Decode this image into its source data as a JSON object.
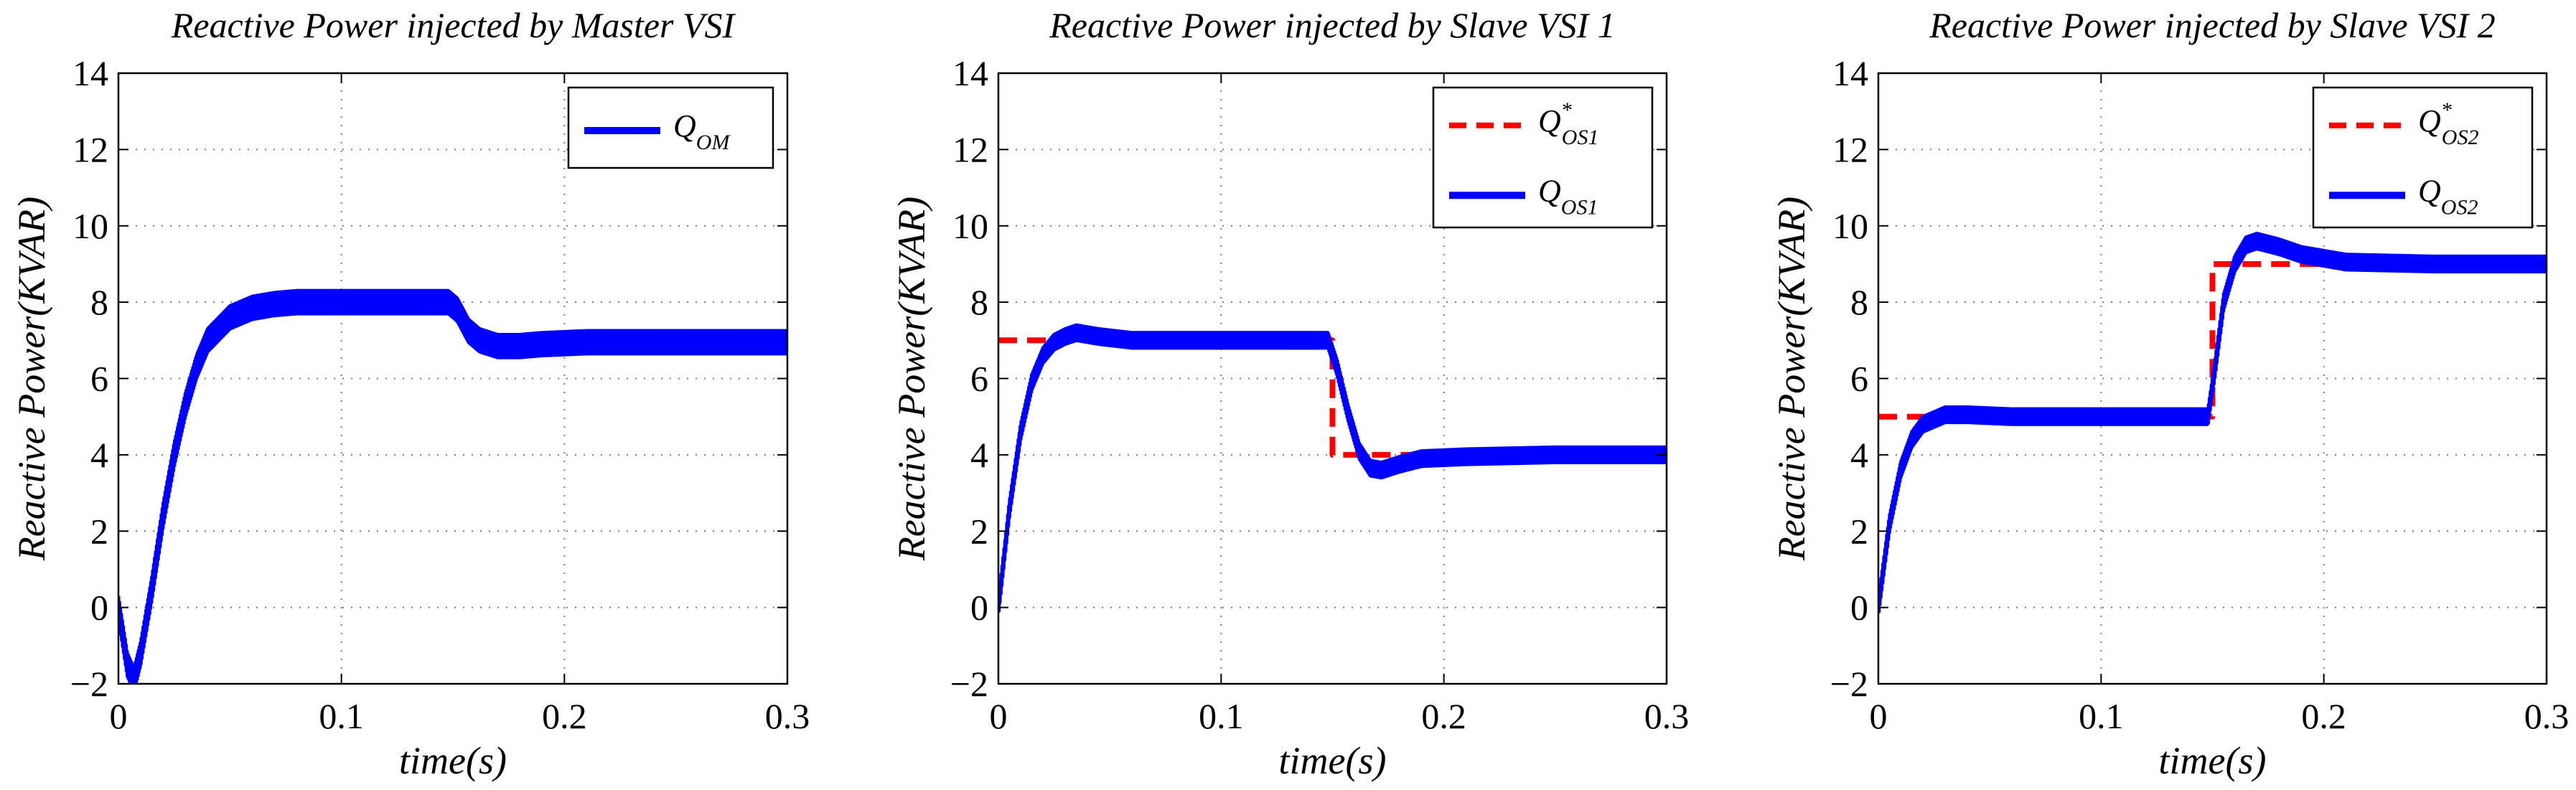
{
  "chart_data": [
    {
      "type": "line",
      "title": "Reactive Power injected by Master VSI",
      "xlabel": "time(s)",
      "ylabel": "Reactive Power(KVAR)",
      "xlim": [
        0,
        0.3
      ],
      "ylim": [
        -2,
        14
      ],
      "xticks": [
        "0",
        "0.1",
        "0.2",
        "0.3"
      ],
      "yticks": [
        "−2",
        "0",
        "2",
        "4",
        "6",
        "8",
        "10",
        "12",
        "14"
      ],
      "grid": true,
      "legend_position": "top-right",
      "series": [
        {
          "name": "Q_OM",
          "symbol": "Q",
          "subscript": "OM",
          "superscript": "",
          "style": "solid",
          "color": "#0000ff",
          "ripple": 0.3,
          "points": [
            [
              0,
              0
            ],
            [
              0.004,
              -1.5
            ],
            [
              0.007,
              -1.9
            ],
            [
              0.01,
              -1.2
            ],
            [
              0.015,
              0.5
            ],
            [
              0.02,
              2.4
            ],
            [
              0.025,
              4.0
            ],
            [
              0.03,
              5.3
            ],
            [
              0.035,
              6.3
            ],
            [
              0.04,
              7.0
            ],
            [
              0.05,
              7.6
            ],
            [
              0.06,
              7.85
            ],
            [
              0.07,
              7.95
            ],
            [
              0.08,
              8.0
            ],
            [
              0.1,
              8.0
            ],
            [
              0.12,
              8.0
            ],
            [
              0.148,
              8.0
            ],
            [
              0.152,
              7.8
            ],
            [
              0.157,
              7.25
            ],
            [
              0.162,
              7.0
            ],
            [
              0.17,
              6.85
            ],
            [
              0.18,
              6.85
            ],
            [
              0.19,
              6.9
            ],
            [
              0.21,
              6.95
            ],
            [
              0.25,
              6.95
            ],
            [
              0.3,
              6.95
            ]
          ]
        }
      ]
    },
    {
      "type": "line",
      "title": "Reactive Power injected by Slave VSI 1",
      "xlabel": "time(s)",
      "ylabel": "Reactive Power(KVAR)",
      "xlim": [
        0,
        0.3
      ],
      "ylim": [
        -2,
        14
      ],
      "xticks": [
        "0",
        "0.1",
        "0.2",
        "0.3"
      ],
      "yticks": [
        "−2",
        "0",
        "2",
        "4",
        "6",
        "8",
        "10",
        "12",
        "14"
      ],
      "grid": true,
      "legend_position": "top-right",
      "series": [
        {
          "name": "Q*_OS1",
          "symbol": "Q",
          "subscript": "OS1",
          "superscript": "*",
          "style": "dashed",
          "color": "#ff0000",
          "ripple": 0,
          "points": [
            [
              0,
              7
            ],
            [
              0.15,
              7
            ],
            [
              0.15,
              4
            ],
            [
              0.3,
              4
            ]
          ]
        },
        {
          "name": "Q_OS1",
          "symbol": "Q",
          "subscript": "OS1",
          "superscript": "",
          "style": "solid",
          "color": "#0000ff",
          "ripple": 0.2,
          "points": [
            [
              0,
              0
            ],
            [
              0.005,
              2.6
            ],
            [
              0.01,
              4.6
            ],
            [
              0.015,
              5.9
            ],
            [
              0.02,
              6.6
            ],
            [
              0.025,
              6.95
            ],
            [
              0.03,
              7.1
            ],
            [
              0.035,
              7.2
            ],
            [
              0.045,
              7.1
            ],
            [
              0.06,
              7.0
            ],
            [
              0.1,
              7.0
            ],
            [
              0.148,
              7.0
            ],
            [
              0.152,
              6.3
            ],
            [
              0.157,
              5.1
            ],
            [
              0.162,
              4.1
            ],
            [
              0.167,
              3.65
            ],
            [
              0.172,
              3.6
            ],
            [
              0.18,
              3.75
            ],
            [
              0.19,
              3.9
            ],
            [
              0.21,
              3.95
            ],
            [
              0.25,
              4.0
            ],
            [
              0.3,
              4.0
            ]
          ]
        }
      ]
    },
    {
      "type": "line",
      "title": "Reactive Power injected by Slave VSI 2",
      "xlabel": "time(s)",
      "ylabel": "Reactive Power(KVAR)",
      "xlim": [
        0,
        0.3
      ],
      "ylim": [
        -2,
        14
      ],
      "xticks": [
        "0",
        "0.1",
        "0.2",
        "0.3"
      ],
      "yticks": [
        "−2",
        "0",
        "2",
        "4",
        "6",
        "8",
        "10",
        "12",
        "14"
      ],
      "grid": true,
      "legend_position": "top-right",
      "series": [
        {
          "name": "Q*_OS2",
          "symbol": "Q",
          "subscript": "OS2",
          "superscript": "*",
          "style": "dashed",
          "color": "#ff0000",
          "ripple": 0,
          "points": [
            [
              0,
              5
            ],
            [
              0.15,
              5
            ],
            [
              0.15,
              9
            ],
            [
              0.3,
              9
            ]
          ]
        },
        {
          "name": "Q_OS2",
          "symbol": "Q",
          "subscript": "OS2",
          "superscript": "",
          "style": "solid",
          "color": "#0000ff",
          "ripple": 0.2,
          "points": [
            [
              0,
              0
            ],
            [
              0.005,
              2.2
            ],
            [
              0.01,
              3.6
            ],
            [
              0.015,
              4.4
            ],
            [
              0.02,
              4.8
            ],
            [
              0.03,
              5.05
            ],
            [
              0.04,
              5.05
            ],
            [
              0.06,
              5.0
            ],
            [
              0.1,
              5.0
            ],
            [
              0.148,
              5.0
            ],
            [
              0.151,
              6.2
            ],
            [
              0.155,
              8.0
            ],
            [
              0.16,
              9.0
            ],
            [
              0.165,
              9.5
            ],
            [
              0.17,
              9.6
            ],
            [
              0.18,
              9.45
            ],
            [
              0.19,
              9.25
            ],
            [
              0.21,
              9.05
            ],
            [
              0.25,
              9.0
            ],
            [
              0.3,
              9.0
            ]
          ]
        }
      ]
    }
  ]
}
